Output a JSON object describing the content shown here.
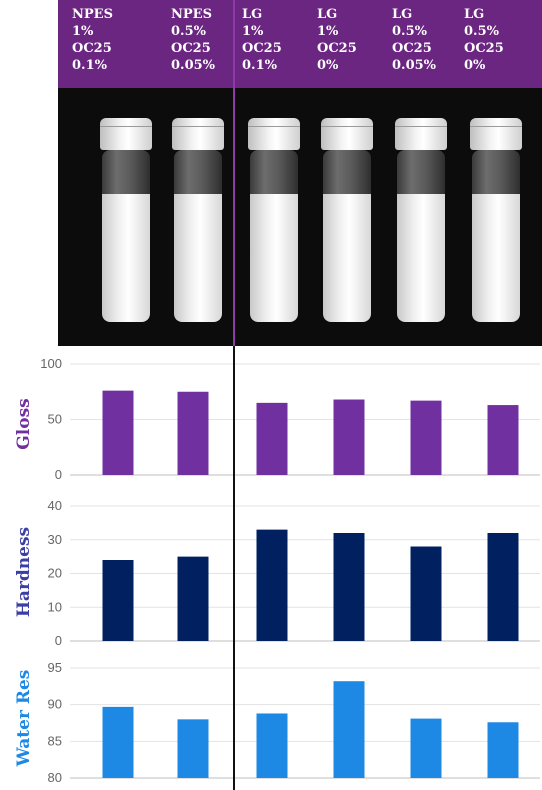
{
  "header": {
    "columns": [
      {
        "lines": [
          "NPES",
          "1%",
          "OC25",
          "0.1%"
        ]
      },
      {
        "lines": [
          "NPES",
          "0.5%",
          "OC25",
          "0.05%"
        ]
      },
      {
        "lines": [
          "LG",
          "1%",
          "OC25",
          "0.1%"
        ]
      },
      {
        "lines": [
          "LG",
          "1%",
          "OC25",
          "0%"
        ]
      },
      {
        "lines": [
          "LG",
          "0.5%",
          "OC25",
          "0.05%"
        ]
      },
      {
        "lines": [
          "LG",
          "0.5%",
          "OC25",
          "0%"
        ]
      }
    ],
    "background_color": "#6b2681"
  },
  "chart_data": [
    {
      "type": "bar",
      "ylabel": "Gloss",
      "ylim": [
        0,
        100
      ],
      "yticks": [
        0,
        50,
        100
      ],
      "values": [
        76,
        75,
        65,
        68,
        67,
        63
      ],
      "color": "#7030a0",
      "label_color": "#7030a0",
      "grid": true
    },
    {
      "type": "bar",
      "ylabel": "Hardness",
      "ylim": [
        0,
        40
      ],
      "yticks": [
        0,
        10,
        20,
        30,
        40
      ],
      "values": [
        24,
        25,
        33,
        32,
        28,
        32
      ],
      "color": "#002060",
      "label_color": "#3b3fa3",
      "grid": true
    },
    {
      "type": "bar",
      "ylabel": "Water Res",
      "ylim": [
        80,
        95
      ],
      "yticks": [
        80,
        85,
        90,
        95
      ],
      "values": [
        89.7,
        88,
        88.8,
        93.2,
        88.1,
        87.6
      ],
      "color": "#1e88e5",
      "label_color": "#1e88e5",
      "grid": true
    }
  ]
}
